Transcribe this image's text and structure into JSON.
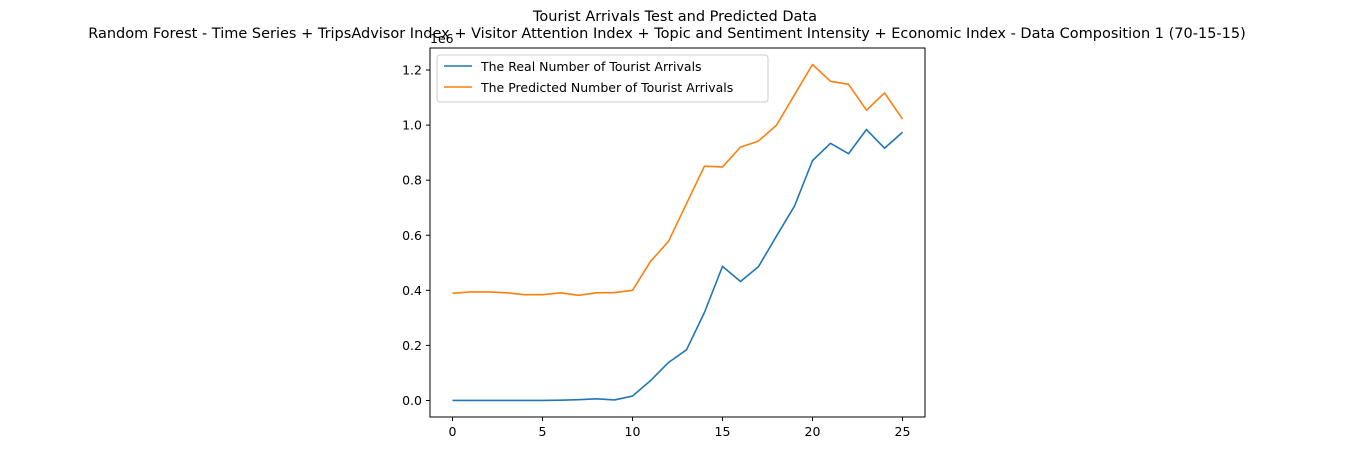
{
  "chart_data": {
    "type": "line",
    "title": "Tourist Arrivals Test and Predicted Data",
    "subtitle": "Random Forest - Time Series + TripsAdvisor Index + Visitor Attention Index + Topic and Sentiment Intensity + Economic Index - Data Composition 1 (70-15-15)",
    "y_offset_label": "1e6",
    "xlim": [
      -1.25,
      26.25
    ],
    "ylim": [
      -0.06,
      1.28
    ],
    "x_ticks": [
      0,
      5,
      10,
      15,
      20,
      25
    ],
    "x_tick_labels": [
      "0",
      "5",
      "10",
      "15",
      "20",
      "25"
    ],
    "y_ticks": [
      0.0,
      0.2,
      0.4,
      0.6,
      0.8,
      1.0,
      1.2
    ],
    "y_tick_labels": [
      "0.0",
      "0.2",
      "0.4",
      "0.6",
      "0.8",
      "1.0",
      "1.2"
    ],
    "grid": false,
    "legend_position": "top-left",
    "x": [
      0,
      1,
      2,
      3,
      4,
      5,
      6,
      7,
      8,
      9,
      10,
      11,
      12,
      13,
      14,
      15,
      16,
      17,
      18,
      19,
      20,
      21,
      22,
      23,
      24,
      25
    ],
    "series": [
      {
        "name": "The Real Number of Tourist Arrivals",
        "color": "#1f77b4",
        "values": [
          0.0,
          0.0,
          0.0,
          0.0,
          0.0,
          0.0,
          0.001,
          0.003,
          0.006,
          0.002,
          0.016,
          0.072,
          0.138,
          0.184,
          0.32,
          0.487,
          0.432,
          0.486,
          0.597,
          0.706,
          0.871,
          0.934,
          0.896,
          0.984,
          0.916,
          0.974
        ]
      },
      {
        "name": "The Predicted Number of Tourist Arrivals",
        "color": "#ff7f0e",
        "values": [
          0.389,
          0.394,
          0.394,
          0.391,
          0.384,
          0.384,
          0.391,
          0.382,
          0.391,
          0.392,
          0.4,
          0.505,
          0.578,
          0.715,
          0.851,
          0.848,
          0.92,
          0.942,
          1.0,
          1.11,
          1.22,
          1.159,
          1.148,
          1.054,
          1.117,
          1.022
        ]
      }
    ]
  }
}
